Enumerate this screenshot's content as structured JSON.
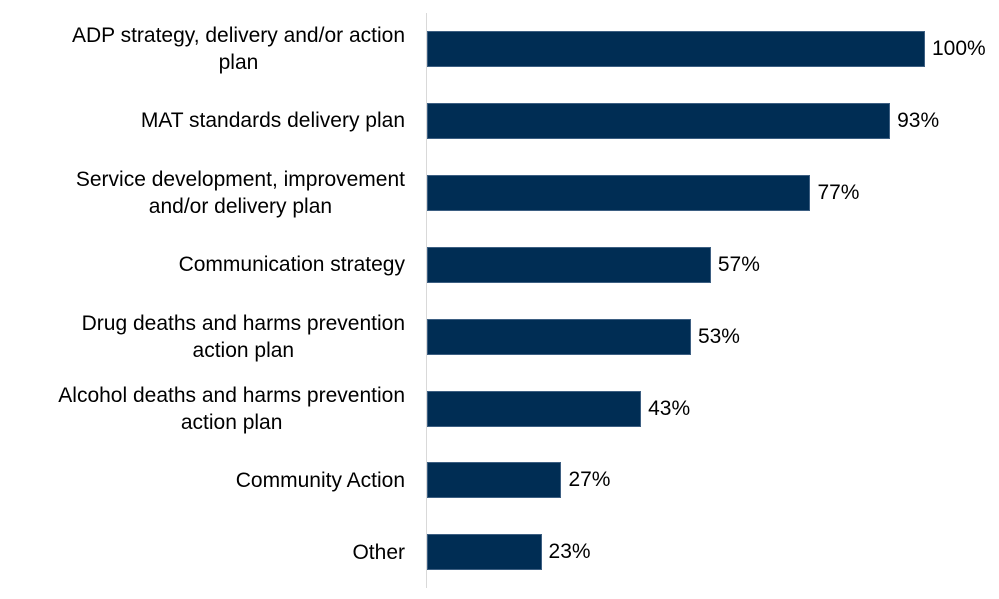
{
  "chart_data": {
    "type": "bar",
    "orientation": "horizontal",
    "title": "",
    "xlabel": "",
    "ylabel": "",
    "categories": [
      "ADP strategy, delivery and/or action plan",
      "MAT  standards delivery plan",
      "Service development, improvement and/or delivery plan",
      "Communication strategy",
      "Drug deaths and harms prevention action plan",
      "Alcohol deaths and harms prevention action plan",
      "Community Action",
      "Other"
    ],
    "values": [
      100,
      93,
      77,
      57,
      53,
      43,
      27,
      23
    ],
    "value_labels": [
      "100%",
      "93%",
      "77%",
      "57%",
      "53%",
      "43%",
      "27%",
      "23%"
    ],
    "xlim": [
      0,
      100
    ],
    "grid": false,
    "legend": "none",
    "bar_color": "#002d54"
  },
  "rows": [
    {
      "label": "ADP strategy, delivery and/or action plan",
      "value": 100,
      "value_label": "100%"
    },
    {
      "label": "MAT  standards delivery plan",
      "value": 93,
      "value_label": "93%"
    },
    {
      "label": "Service development, improvement and/or delivery plan",
      "value": 77,
      "value_label": "77%"
    },
    {
      "label": "Communication strategy",
      "value": 57,
      "value_label": "57%"
    },
    {
      "label": "Drug deaths and harms prevention action plan",
      "value": 53,
      "value_label": "53%"
    },
    {
      "label": "Alcohol deaths and harms prevention action plan",
      "value": 43,
      "value_label": "43%"
    },
    {
      "label": "Community Action",
      "value": 27,
      "value_label": "27%"
    },
    {
      "label": "Other",
      "value": 23,
      "value_label": "23%"
    }
  ]
}
